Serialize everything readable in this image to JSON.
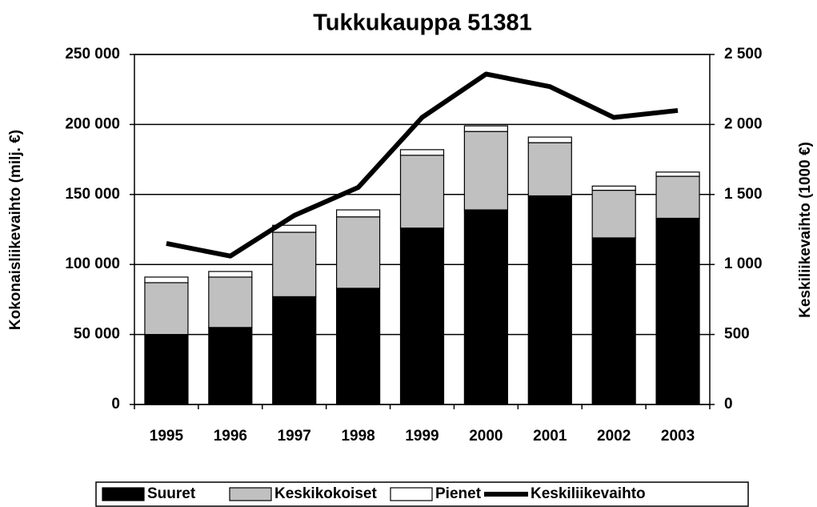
{
  "chart_data": {
    "type": "bar",
    "stacked": true,
    "title": "Tukkukauppa 51381",
    "y_label": "Kokonaisliikevaihto (milj. €)",
    "y2_label": "Keskiliikevaihto (1000 €)",
    "categories": [
      "1995",
      "1996",
      "1997",
      "1998",
      "1999",
      "2000",
      "2001",
      "2002",
      "2003"
    ],
    "series": [
      {
        "name": "Suuret",
        "color": "#000000",
        "values": [
          50000,
          55000,
          77000,
          83000,
          126000,
          139000,
          149000,
          119000,
          133000
        ]
      },
      {
        "name": "Keskikokoiset",
        "color": "#c0c0c0",
        "values": [
          37000,
          36000,
          46000,
          51000,
          52000,
          56000,
          38000,
          34000,
          30000
        ]
      },
      {
        "name": "Pienet",
        "color": "#ffffff",
        "values": [
          4000,
          4000,
          5000,
          5000,
          4000,
          4000,
          4000,
          3000,
          3000
        ]
      },
      {
        "name": "Keskiliikevaihto",
        "type": "line",
        "axis": "y2",
        "color": "#000000",
        "values": [
          1150,
          1060,
          1350,
          1550,
          2050,
          2360,
          2270,
          2050,
          2100
        ]
      }
    ],
    "ylim": [
      0,
      250000
    ],
    "yticks": [
      0,
      {
        "value": 50000,
        "label": "50 000"
      },
      {
        "value": 100000,
        "label": "100 000"
      },
      {
        "value": 150000,
        "label": "150 000"
      },
      {
        "value": 200000,
        "label": "200 000"
      },
      {
        "value": 250000,
        "label": "250 000"
      }
    ],
    "y2lim": [
      0,
      2500
    ],
    "y2ticks": [
      0,
      500,
      {
        "value": 1000,
        "label": "1 000"
      },
      {
        "value": 1500,
        "label": "1 500"
      },
      {
        "value": 2000,
        "label": "2 000"
      },
      {
        "value": 2500,
        "label": "2 500"
      }
    ],
    "grid": true
  }
}
